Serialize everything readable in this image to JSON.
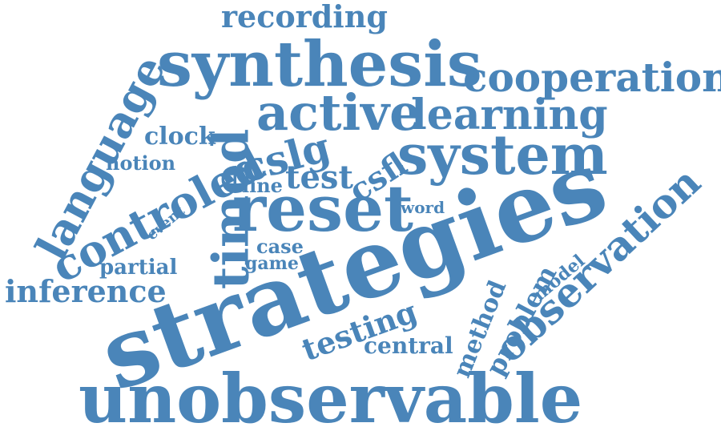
{
  "word_color": "#4a85b9",
  "words": {
    "recording": "recording",
    "synthesis": "synthesis",
    "cooperation": "cooperation",
    "language": "language",
    "active": "active",
    "learning": "learning",
    "clock": "clock",
    "timed": "timed",
    "cslg": "cslg",
    "system": "system",
    "notion": "notion",
    "controled": "controled",
    "test": "test",
    "csfl": "csfl",
    "line": "line",
    "reset": "reset",
    "word": "word",
    "event": "event",
    "strategies": "strategies",
    "observation": "observation",
    "case": "case",
    "game": "game",
    "partial": "partial",
    "model": "model",
    "inference": "inference",
    "problem": "problem",
    "method": "method",
    "testing": "testing",
    "central": "central",
    "unobservable": "unobservable"
  }
}
